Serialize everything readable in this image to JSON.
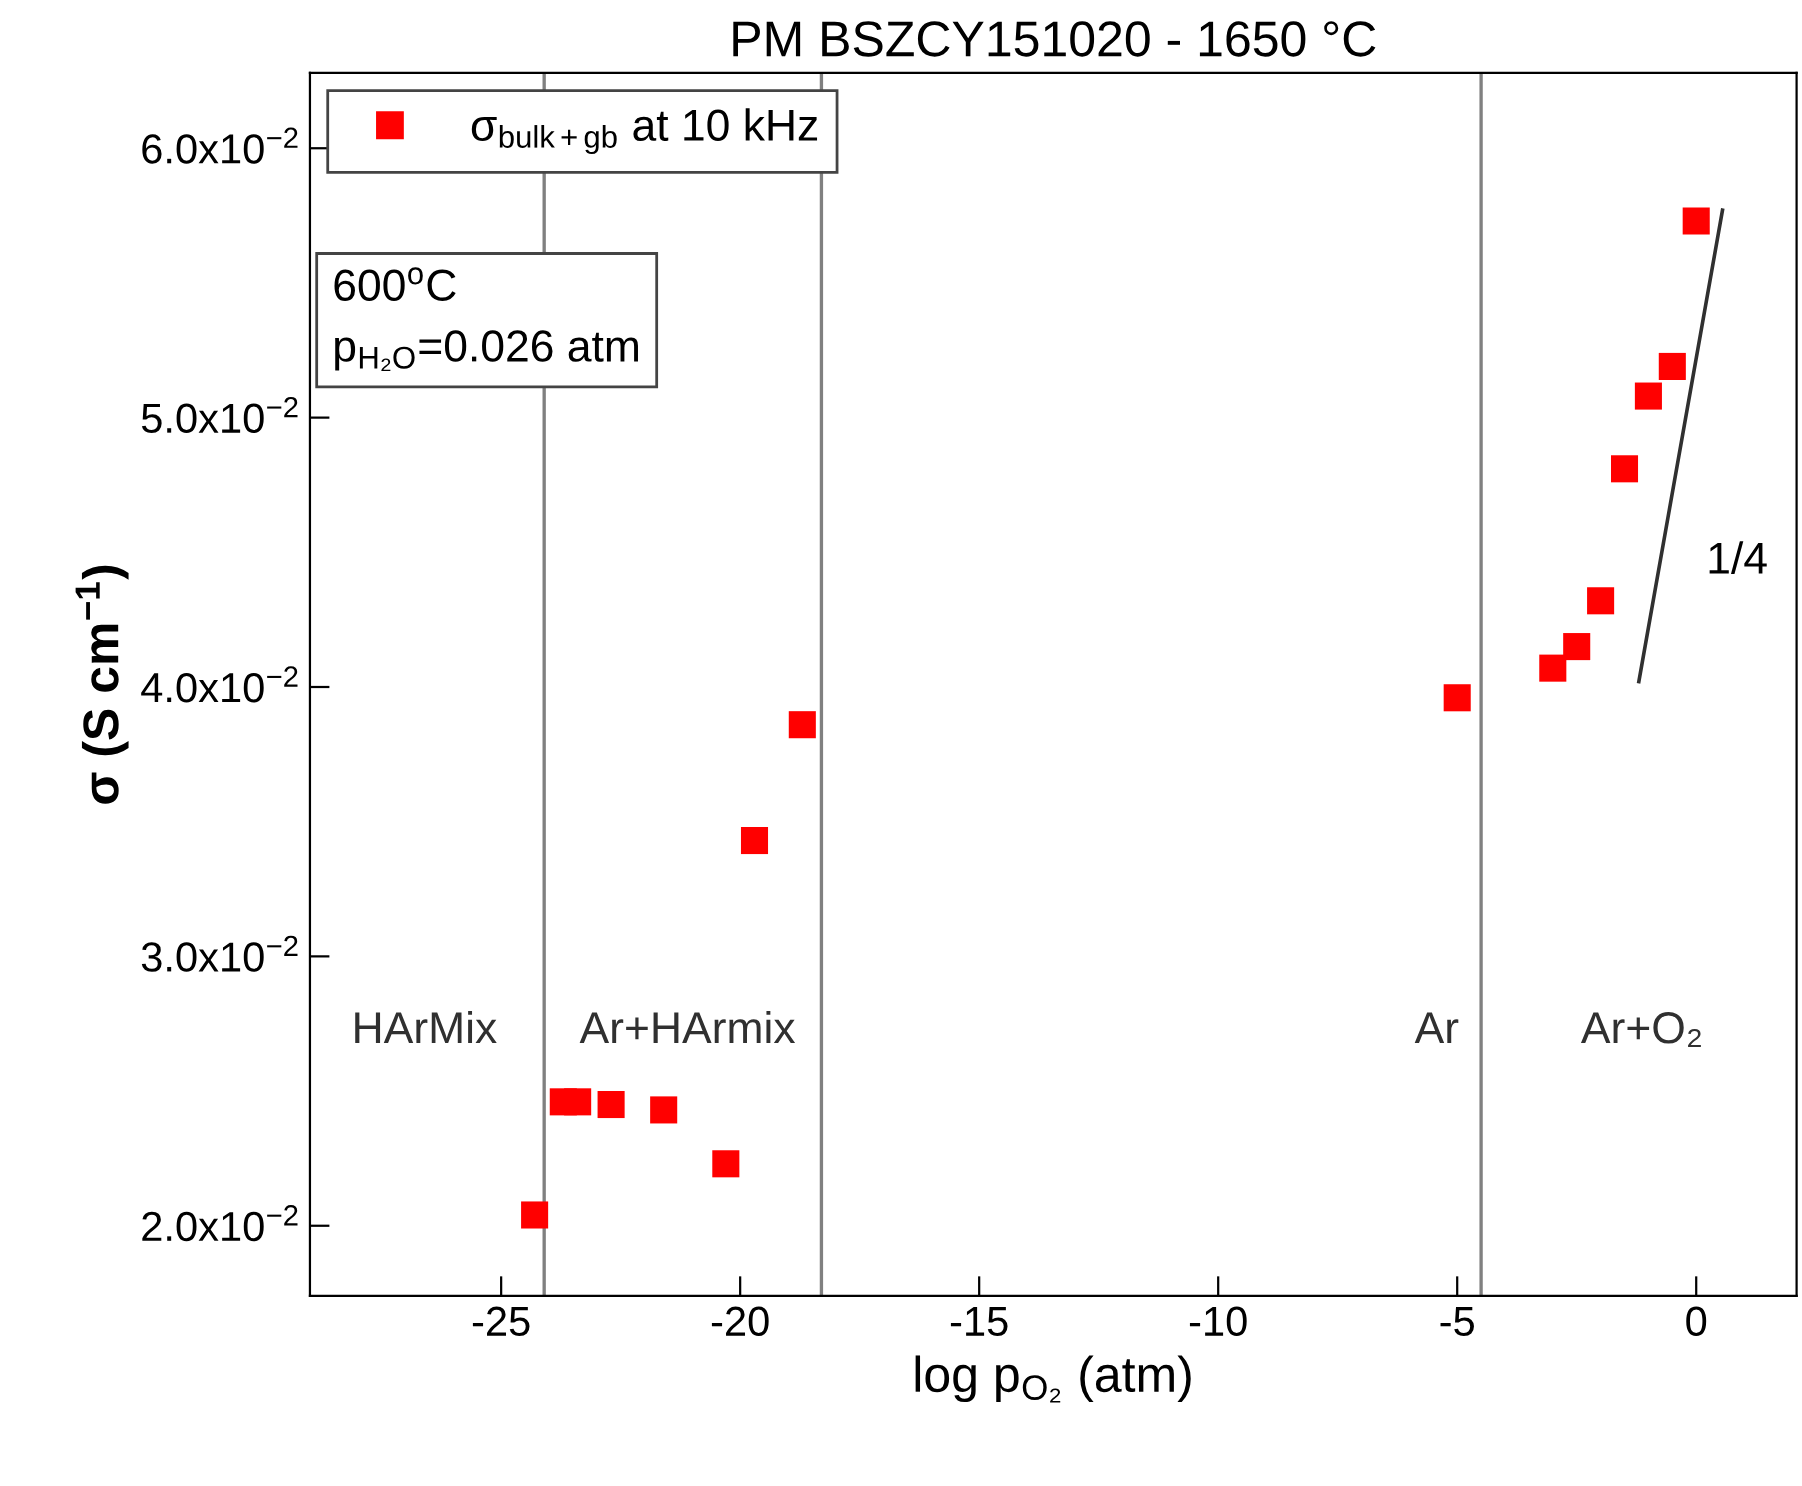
{
  "chart_data": {
    "type": "scatter",
    "title": "PM BSZCY151020 - 1650 °C",
    "xlabel": "log p$_{O₂}$ (atm)",
    "ylabel": "σ (S cm$^{−1}$)",
    "series": [
      {
        "name": "σ$_{bulk+gb}$ at 10 kHz",
        "color": "#ff0000",
        "x": [
          -24.3,
          -23.7,
          -23.4,
          -22.7,
          -21.6,
          -20.3,
          -19.7,
          -18.7,
          -5.0,
          -3.0,
          -2.5,
          -2.0,
          -1.5,
          -1.0,
          -0.5,
          0.0
        ],
        "values": [
          0.0204,
          0.0246,
          0.0246,
          0.0245,
          0.0243,
          0.0223,
          0.0343,
          0.0386,
          0.0396,
          0.0407,
          0.0415,
          0.0432,
          0.0481,
          0.0508,
          0.0519,
          0.0573
        ],
        "marker": "square"
      },
      {
        "type": "line",
        "color": "#303030",
        "x": [
          -1.2,
          0.55
        ],
        "values": [
          0.0402,
          0.0577
        ],
        "marker": "none",
        "line_style": "solid"
      }
    ],
    "xlim": [
      -29.0,
      2.1
    ],
    "xticks": [
      -25,
      -20,
      -15,
      -10,
      -5,
      0
    ],
    "ylim": [
      0.0174,
      0.0628
    ],
    "yticks": [
      {
        "value": 0.02,
        "label": "2.0x10$^{−2}$"
      },
      {
        "value": 0.03,
        "label": "3.0x10$^{−2}$"
      },
      {
        "value": 0.04,
        "label": "4.0x10$^{−2}$"
      },
      {
        "value": 0.05,
        "label": "5.0x10$^{−2}$"
      },
      {
        "value": 0.06,
        "label": "6.0x10$^{−2}$"
      }
    ],
    "ref_lines": [
      {
        "axis": "x",
        "value": -24.1,
        "color": "#808080"
      },
      {
        "axis": "x",
        "value": -18.3,
        "color": "#808080"
      },
      {
        "axis": "x",
        "value": -4.5,
        "color": "#808080"
      }
    ],
    "annotations": [
      "600$^{o}$C\np$_{H₂O}$=0.026 atm",
      "1/4",
      "HArMix",
      "Ar+HArmix",
      "Ar",
      "Ar+O₂"
    ],
    "legend": "top left",
    "grid": false
  }
}
